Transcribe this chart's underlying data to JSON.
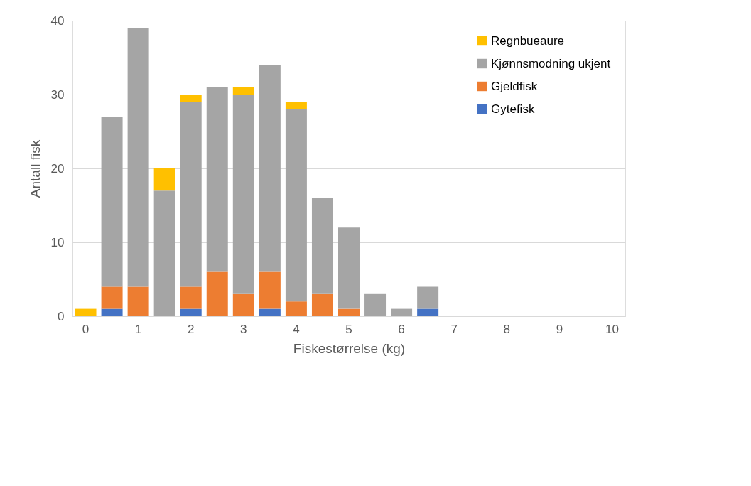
{
  "chart_data": {
    "type": "bar",
    "stacked": true,
    "xlabel": "Fiskestørrelse (kg)",
    "ylabel": "Antall fisk",
    "categories": [
      "0",
      null,
      "1",
      null,
      "2",
      null,
      "3",
      null,
      "4",
      null,
      "5",
      null,
      "6",
      null,
      "7",
      null,
      "8",
      null,
      "9",
      null,
      "10"
    ],
    "series": [
      {
        "name": "Gytefisk",
        "color": "#4472c4",
        "values": [
          0,
          1,
          0,
          0,
          1,
          0,
          0,
          1,
          0,
          0,
          0,
          0,
          0,
          1,
          0,
          0,
          0,
          0,
          0,
          0,
          0
        ]
      },
      {
        "name": "Gjeldfisk",
        "color": "#ed7d31",
        "values": [
          0,
          3,
          4,
          0,
          3,
          6,
          3,
          5,
          2,
          3,
          1,
          0,
          0,
          0,
          0,
          0,
          0,
          0,
          0,
          0,
          0
        ]
      },
      {
        "name": "Kjønnsmodning ukjent",
        "color": "#a5a5a5",
        "values": [
          0,
          23,
          35,
          17,
          25,
          25,
          27,
          28,
          26,
          13,
          11,
          3,
          1,
          3,
          0,
          0,
          0,
          0,
          0,
          0,
          0
        ]
      },
      {
        "name": "Regnbueaure",
        "color": "#ffc000",
        "values": [
          1,
          0,
          0,
          3,
          1,
          0,
          1,
          0,
          1,
          0,
          0,
          0,
          0,
          0,
          0,
          0,
          0,
          0,
          0,
          0,
          0
        ]
      }
    ],
    "ylim": [
      0,
      40
    ],
    "yticks": [
      0,
      10,
      20,
      30,
      40
    ],
    "grid": "y",
    "legend": "top right"
  }
}
